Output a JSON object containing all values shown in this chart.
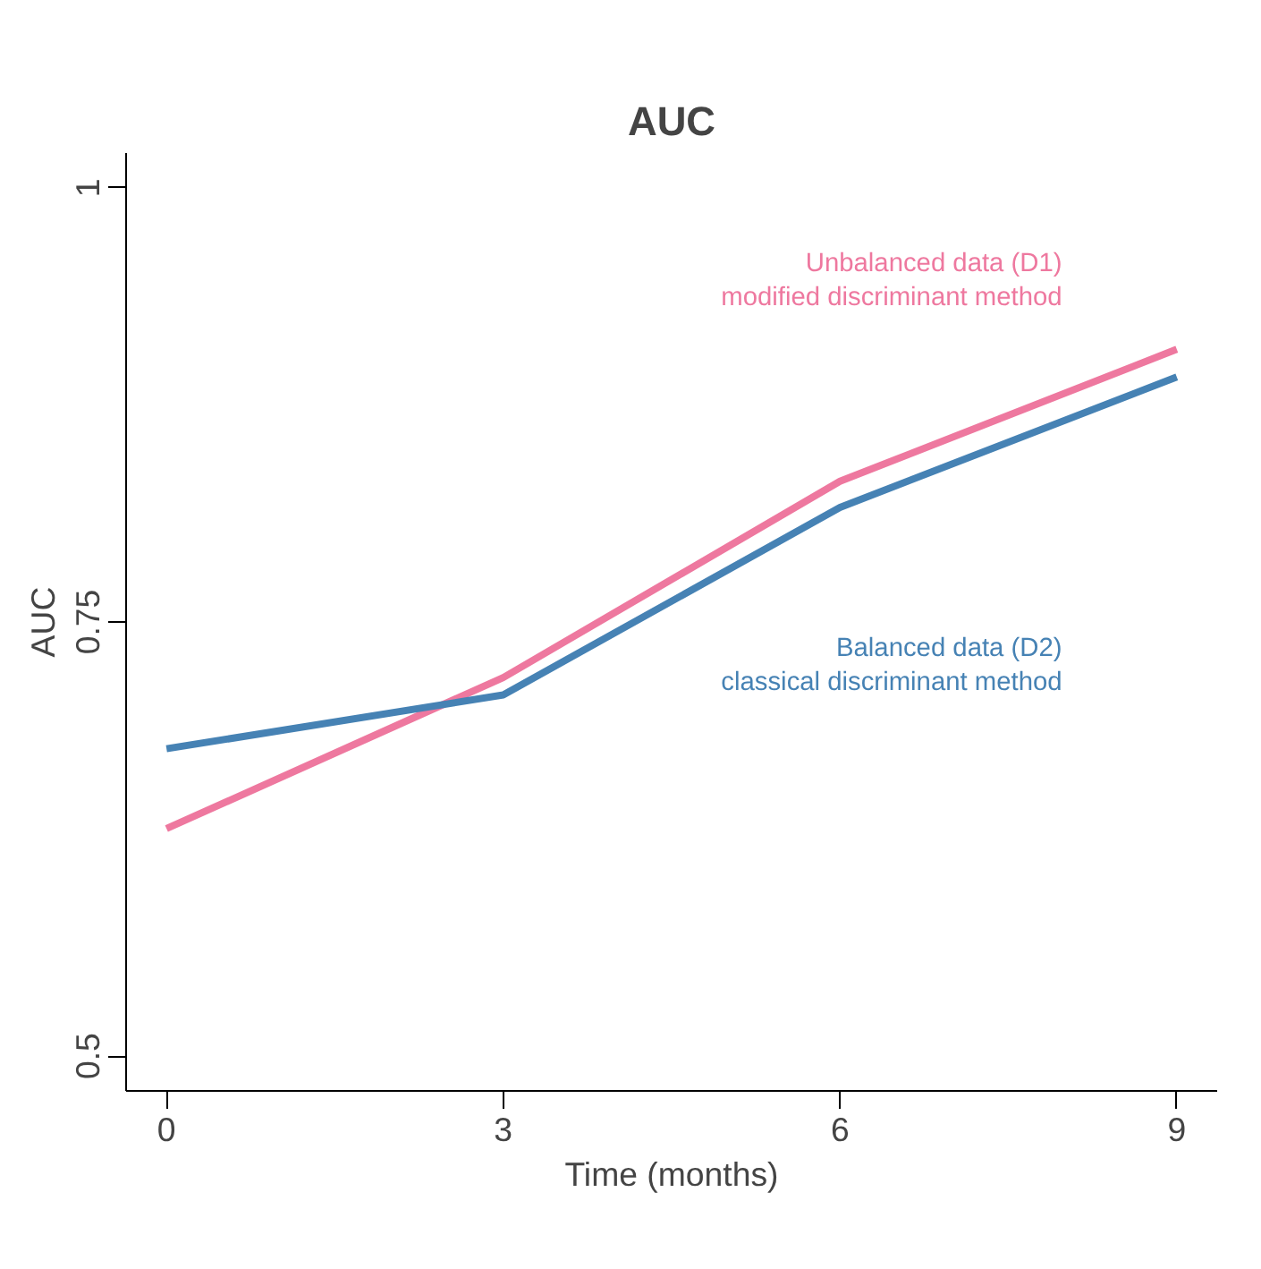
{
  "chart_data": {
    "type": "line",
    "title": "AUC",
    "xlabel": "Time (months)",
    "ylabel": "AUC",
    "x": [
      0,
      3,
      6,
      9
    ],
    "series": [
      {
        "name": "Unbalanced data (D1)\nmodified discriminant method",
        "color": "#ee789f",
        "values": [
          0.631,
          0.718,
          0.831,
          0.907
        ]
      },
      {
        "name": "Balanced data (D2)\nclassical discriminant method",
        "color": "#4682b4",
        "values": [
          0.677,
          0.708,
          0.816,
          0.891
        ]
      }
    ],
    "xlim": [
      -0.36,
      9.36
    ],
    "ylim": [
      0.48,
      1.02
    ],
    "xticks": [
      0,
      3,
      6,
      9
    ],
    "yticks": [
      0.5,
      {
        "value": 0.75,
        "label": "0.75"
      },
      1
    ],
    "grid": false,
    "legend": false,
    "marker": "none",
    "line_style": "solid"
  }
}
